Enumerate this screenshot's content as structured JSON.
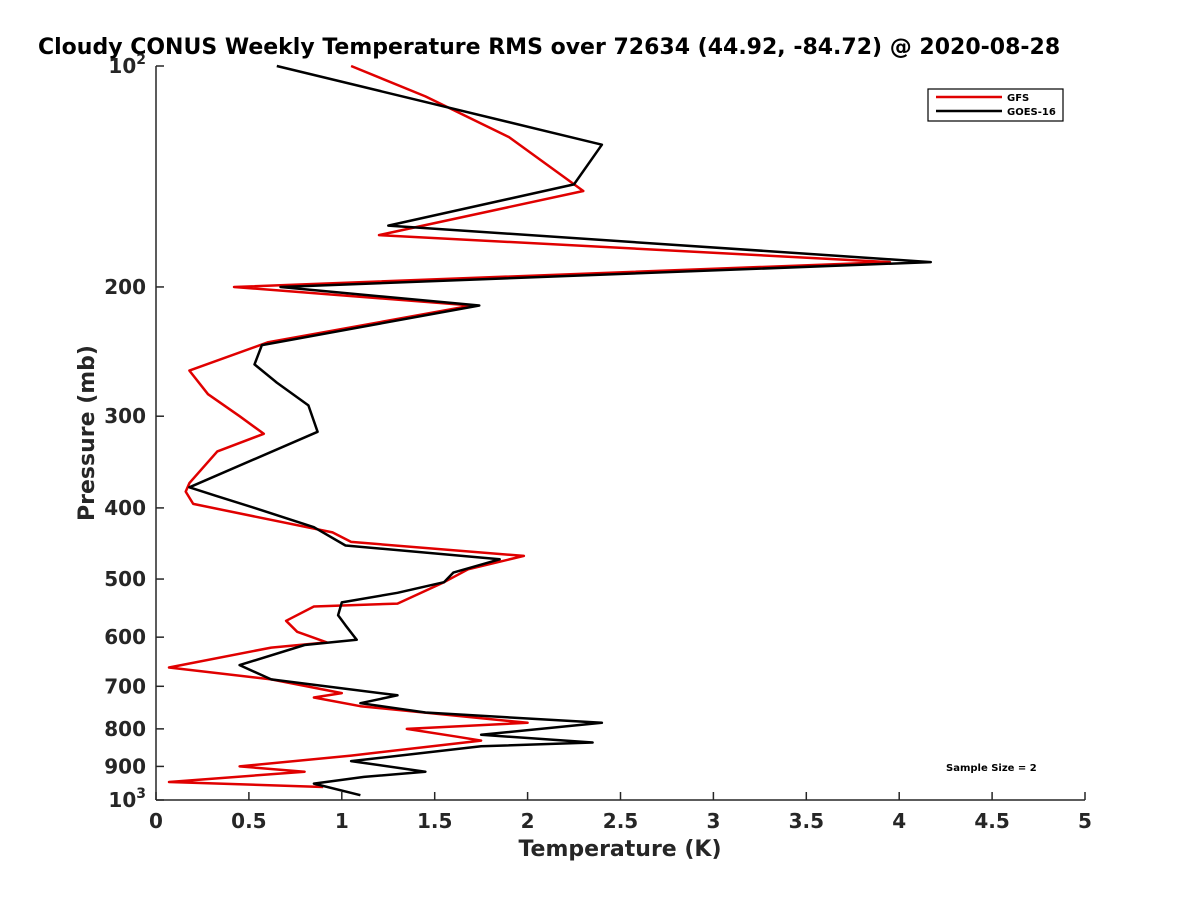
{
  "chart_data": {
    "type": "line",
    "title": "Cloudy CONUS Weekly Temperature RMS over 72634 (44.92, -84.72) @ 2020-08-28",
    "xlabel": "Temperature (K)",
    "ylabel": "Pressure (mb)",
    "xlim": [
      0,
      5
    ],
    "ylim": [
      100,
      1000
    ],
    "yscale": "log",
    "y_reversed": true,
    "x_ticks": [
      "0",
      "0.5",
      "1",
      "1.5",
      "2",
      "2.5",
      "3",
      "3.5",
      "4",
      "4.5",
      "5"
    ],
    "x_tick_values": [
      0,
      0.5,
      1,
      1.5,
      2,
      2.5,
      3,
      3.5,
      4,
      4.5,
      5
    ],
    "y_tick_values": [
      100,
      200,
      300,
      400,
      500,
      600,
      700,
      800,
      900,
      1000
    ],
    "y_tick_labels": [
      {
        "base": "10",
        "exp": "2"
      },
      {
        "base": "200",
        "exp": ""
      },
      {
        "base": "300",
        "exp": ""
      },
      {
        "base": "400",
        "exp": ""
      },
      {
        "base": "500",
        "exp": ""
      },
      {
        "base": "600",
        "exp": ""
      },
      {
        "base": "700",
        "exp": ""
      },
      {
        "base": "800",
        "exp": ""
      },
      {
        "base": "900",
        "exp": ""
      },
      {
        "base": "10",
        "exp": "3"
      }
    ],
    "grid": false,
    "legend_position": "top-right",
    "annotation": "Sample Size = 2",
    "series": [
      {
        "name": "GFS",
        "color": "#e00000",
        "x": [
          1.05,
          1.45,
          1.9,
          2.3,
          1.2,
          3.95,
          0.42,
          1.7,
          0.6,
          0.18,
          0.28,
          0.45,
          0.58,
          0.33,
          0.18,
          0.16,
          0.2,
          0.95,
          1.05,
          1.98,
          1.68,
          1.55,
          1.3,
          0.85,
          0.7,
          0.76,
          0.92,
          0.62,
          0.07,
          0.62,
          1.0,
          0.85,
          1.1,
          2.0,
          1.35,
          1.62,
          1.75,
          1.05,
          0.45,
          0.8,
          0.07,
          0.9
        ],
        "y": [
          100,
          110,
          125,
          148,
          170,
          185,
          200,
          212,
          238,
          260,
          280,
          300,
          317,
          335,
          370,
          380,
          395,
          432,
          445,
          465,
          485,
          505,
          540,
          545,
          570,
          590,
          610,
          620,
          660,
          685,
          715,
          725,
          745,
          785,
          800,
          820,
          830,
          870,
          900,
          915,
          945,
          960
        ]
      },
      {
        "name": "GOES-16",
        "color": "#000000",
        "x": [
          0.65,
          2.4,
          2.25,
          1.25,
          4.17,
          0.67,
          1.74,
          0.57,
          0.53,
          0.65,
          0.82,
          0.87,
          0.18,
          0.32,
          0.53,
          0.85,
          1.02,
          1.85,
          1.6,
          1.55,
          1.3,
          1.0,
          0.98,
          1.02,
          1.08,
          0.8,
          0.45,
          0.62,
          1.3,
          1.1,
          1.45,
          2.4,
          1.75,
          2.35,
          1.75,
          1.05,
          1.45,
          1.12,
          0.85,
          1.1
        ],
        "y": [
          100,
          128,
          145,
          165,
          185,
          200,
          212,
          240,
          255,
          270,
          290,
          315,
          375,
          385,
          400,
          425,
          450,
          470,
          490,
          505,
          522,
          538,
          560,
          578,
          605,
          615,
          655,
          685,
          720,
          738,
          760,
          785,
          815,
          835,
          845,
          885,
          915,
          930,
          950,
          985
        ]
      }
    ]
  }
}
